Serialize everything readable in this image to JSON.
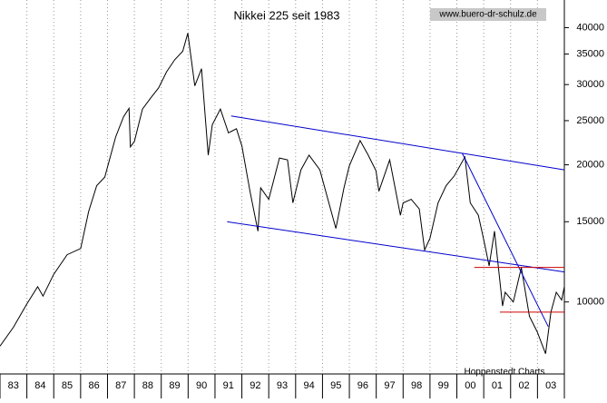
{
  "chart_data": {
    "type": "line",
    "title": "Nikkei 225 seit 1983",
    "annotations": [
      "www.buero-dr-schulz.de",
      "Hoppenstedt Charts"
    ],
    "x": [
      1983.0,
      1983.5,
      1984.0,
      1984.4,
      1984.6,
      1985.0,
      1985.5,
      1986.0,
      1986.3,
      1986.6,
      1986.9,
      1987.3,
      1987.6,
      1987.8,
      1987.85,
      1988.0,
      1988.3,
      1988.6,
      1988.9,
      1989.2,
      1989.5,
      1989.8,
      1989.99,
      1990.25,
      1990.5,
      1990.75,
      1990.9,
      1991.2,
      1991.5,
      1991.8,
      1992.0,
      1992.3,
      1992.6,
      1992.7,
      1993.0,
      1993.4,
      1993.7,
      1993.9,
      1994.2,
      1994.5,
      1994.9,
      1995.3,
      1995.5,
      1995.8,
      1996.0,
      1996.4,
      1996.7,
      1996.99,
      1997.1,
      1997.5,
      1997.9,
      1998.0,
      1998.3,
      1998.6,
      1998.8,
      1999.0,
      1999.3,
      1999.6,
      1999.9,
      2000.3,
      2000.5,
      2000.8,
      2000.99,
      2001.2,
      2001.4,
      2001.7,
      2001.8,
      2002.1,
      2002.4,
      2002.7,
      2002.99,
      2003.3,
      2003.5,
      2003.7,
      2003.9,
      2004.0
    ],
    "series": [
      {
        "color": "#000000",
        "values": [
          8000,
          8800,
          9900,
          10800,
          10300,
          11500,
          12700,
          13100,
          15800,
          18000,
          18800,
          23000,
          25500,
          26600,
          21900,
          22500,
          26500,
          28000,
          29500,
          32000,
          34000,
          35500,
          38900,
          29800,
          32500,
          21000,
          24500,
          26500,
          23500,
          24000,
          22000,
          17500,
          14300,
          17800,
          16800,
          20700,
          20500,
          16500,
          19500,
          21000,
          19500,
          16000,
          14500,
          17800,
          19900,
          22600,
          21000,
          19400,
          17500,
          20500,
          15500,
          16500,
          16800,
          16000,
          13000,
          13800,
          16500,
          18000,
          18900,
          20800,
          16500,
          15500,
          13800,
          12000,
          14300,
          9800,
          10500,
          10000,
          11900,
          9300,
          8600,
          7700,
          9500,
          10500,
          10100,
          10800
        ]
      }
    ],
    "trend_lines": [
      {
        "color": "#0000cc",
        "x": [
          1991.6,
          2004.0
        ],
        "y": [
          25600,
          19500
        ]
      },
      {
        "color": "#0000cc",
        "x": [
          1991.45,
          2004.0
        ],
        "y": [
          15000,
          11640
        ]
      },
      {
        "color": "#0000cc",
        "x": [
          2000.2,
          2003.4
        ],
        "y": [
          21200,
          8830
        ]
      },
      {
        "color": "#cc0000",
        "x": [
          2000.65,
          2004.0
        ],
        "y": [
          11910,
          11910
        ]
      },
      {
        "color": "#cc0000",
        "x": [
          2001.6,
          2004.0
        ],
        "y": [
          9500,
          9500
        ]
      }
    ],
    "xlim": [
      1983,
      2004
    ],
    "xticks": [
      {
        "value": 1983,
        "label": "83"
      },
      {
        "value": 1984,
        "label": "84"
      },
      {
        "value": 1985,
        "label": "85"
      },
      {
        "value": 1986,
        "label": "86"
      },
      {
        "value": 1987,
        "label": "87"
      },
      {
        "value": 1988,
        "label": "88"
      },
      {
        "value": 1989,
        "label": "89"
      },
      {
        "value": 1990,
        "label": "90"
      },
      {
        "value": 1991,
        "label": "91"
      },
      {
        "value": 1992,
        "label": "92"
      },
      {
        "value": 1993,
        "label": "93"
      },
      {
        "value": 1994,
        "label": "94"
      },
      {
        "value": 1995,
        "label": "95"
      },
      {
        "value": 1996,
        "label": "96"
      },
      {
        "value": 1997,
        "label": "97"
      },
      {
        "value": 1998,
        "label": "98"
      },
      {
        "value": 1999,
        "label": "99"
      },
      {
        "value": 2000,
        "label": "00"
      },
      {
        "value": 2001,
        "label": "01"
      },
      {
        "value": 2002,
        "label": "02"
      },
      {
        "value": 2003,
        "label": "03"
      }
    ],
    "ylim": [
      6950,
      46000
    ],
    "yticks": [
      10000,
      15000,
      20000,
      25000,
      30000,
      35000,
      40000
    ],
    "log_y": true,
    "y_axis_side": "right",
    "grid": true
  }
}
